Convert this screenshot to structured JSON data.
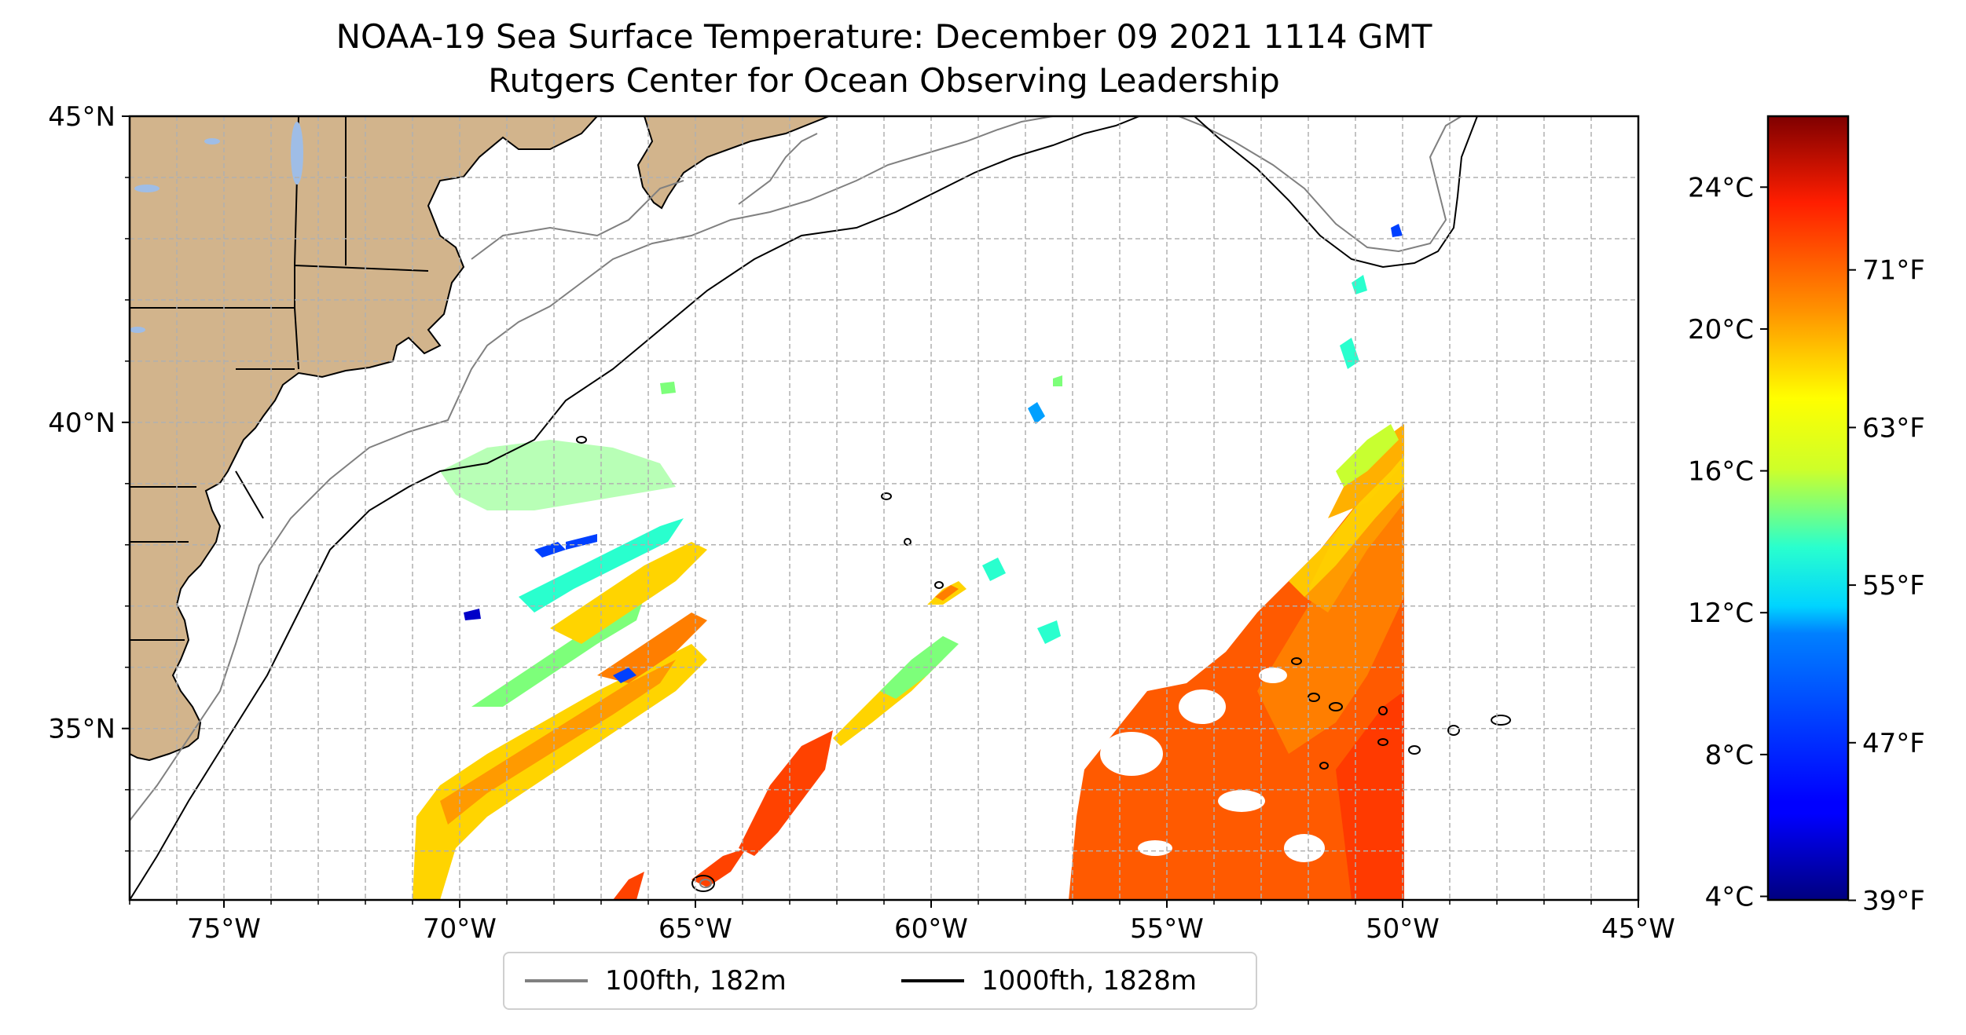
{
  "title": "NOAA-19 Sea Surface Temperature: December 09 2021 1114 GMT",
  "subtitle": "Rutgers Center for Ocean Observing Leadership",
  "map": {
    "lon_range": [
      -77,
      -45
    ],
    "lat_range": [
      32.2,
      45
    ],
    "x_ticks": [
      "75°W",
      "70°W",
      "65°W",
      "60°W",
      "55°W",
      "50°W",
      "45°W"
    ],
    "x_tick_values": [
      -75,
      -70,
      -65,
      -60,
      -55,
      -50,
      -45
    ],
    "y_ticks": [
      "35°N",
      "40°N",
      "45°N"
    ],
    "y_tick_values": [
      35,
      40,
      45
    ],
    "gridlines": true,
    "land_color": "#d2b48c",
    "lake_color": "#9fbde6"
  },
  "legend": {
    "placement": "bottom-center, below map",
    "items": [
      {
        "label": "100fth, 182m",
        "color": "#808080"
      },
      {
        "label": "1000fth, 1828m",
        "color": "#000000"
      }
    ]
  },
  "colorbar": {
    "colormap": "jet",
    "celsius_ticks": [
      "4°C",
      "8°C",
      "12°C",
      "16°C",
      "20°C",
      "24°C"
    ],
    "celsius_values": [
      4,
      8,
      12,
      16,
      20,
      24
    ],
    "fahrenheit_ticks": [
      "39°F",
      "47°F",
      "55°F",
      "63°F",
      "71°F"
    ],
    "fahrenheit_values": [
      39,
      47,
      55,
      63,
      71
    ],
    "range_c": [
      3.9,
      26
    ]
  }
}
